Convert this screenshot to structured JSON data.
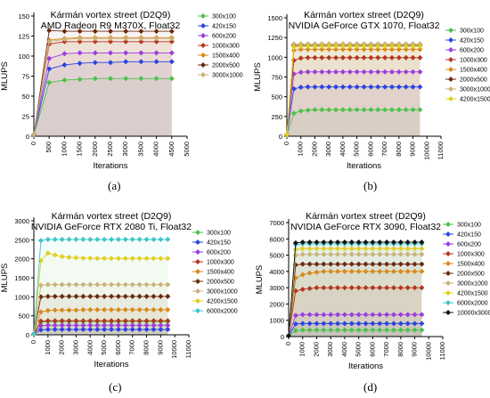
{
  "figure": {
    "captions": [
      "(a)",
      "(b)",
      "(c)",
      "(d)"
    ]
  },
  "chart_data": [
    {
      "type": "line",
      "title": "Kármán vortex street (D2Q9)",
      "subtitle": "AMD Radeon R9 M370X, Float32",
      "xlabel": "Iterations",
      "ylabel": "MLUPS",
      "xlim": [
        0,
        5000
      ],
      "ylim": [
        0,
        150
      ],
      "xticks": [
        0,
        500,
        1000,
        1500,
        2000,
        2500,
        3000,
        3500,
        4000,
        4500,
        5000
      ],
      "yticks": [
        0,
        25,
        50,
        75,
        100,
        125,
        150
      ],
      "grid": false,
      "legend_position": "right",
      "marker": "diamond",
      "x": [
        0,
        500,
        1000,
        1500,
        2000,
        2500,
        3000,
        3500,
        4000,
        4500
      ],
      "series": [
        {
          "name": "300x100",
          "color": "#4cc24c",
          "values": [
            2,
            67,
            70,
            71,
            72,
            72,
            72,
            72,
            72,
            72
          ]
        },
        {
          "name": "420x150",
          "color": "#2a44e0",
          "values": [
            2,
            84,
            89,
            91,
            92,
            92,
            93,
            93,
            93,
            93
          ]
        },
        {
          "name": "600x200",
          "color": "#9b3de0",
          "values": [
            2,
            97,
            103,
            104,
            104,
            104,
            104,
            104,
            104,
            104
          ]
        },
        {
          "name": "1000x300",
          "color": "#b5361e",
          "values": [
            2,
            115,
            118,
            118,
            118,
            118,
            118,
            118,
            118,
            118
          ]
        },
        {
          "name": "1500x400",
          "color": "#d98a1a",
          "values": [
            2,
            120,
            122,
            123,
            123,
            123,
            123,
            123,
            123,
            123
          ]
        },
        {
          "name": "2000x500",
          "color": "#6b2a10",
          "values": [
            2,
            132,
            131,
            131,
            131,
            131,
            131,
            131,
            131,
            131
          ]
        },
        {
          "name": "3000x1000",
          "color": "#c9b27a",
          "values": [
            2,
            118,
            121,
            122,
            122,
            122,
            122,
            122,
            122,
            122
          ]
        }
      ]
    },
    {
      "type": "line",
      "title": "Kármán vortex street (D2Q9)",
      "subtitle": "NVIDIA GeForce GTX 1070, Float32",
      "xlabel": "Iterations",
      "ylabel": "MLUPS",
      "xlim": [
        0,
        11000
      ],
      "ylim": [
        0,
        1500
      ],
      "xticks": [
        0,
        1000,
        2000,
        3000,
        4000,
        5000,
        6000,
        7000,
        8000,
        9000,
        10000,
        11000
      ],
      "yticks": [
        0,
        250,
        500,
        750,
        1000,
        1250,
        1500
      ],
      "grid": false,
      "legend_position": "right",
      "marker": "diamond",
      "x": [
        0,
        500,
        1000,
        1500,
        2000,
        2500,
        3000,
        3500,
        4000,
        4500,
        5000,
        5500,
        6000,
        6500,
        7000,
        7500,
        8000,
        8500,
        9000,
        9500
      ],
      "series": [
        {
          "name": "300x100",
          "color": "#4cc24c",
          "values": [
            20,
            290,
            320,
            330,
            335,
            335,
            335,
            335,
            335,
            335,
            335,
            335,
            335,
            335,
            335,
            335,
            335,
            335,
            335,
            335
          ]
        },
        {
          "name": "420x150",
          "color": "#2a44e0",
          "values": [
            20,
            600,
            620,
            625,
            625,
            625,
            625,
            625,
            625,
            625,
            625,
            625,
            625,
            625,
            625,
            625,
            625,
            625,
            625,
            625
          ]
        },
        {
          "name": "600x200",
          "color": "#9b3de0",
          "values": [
            20,
            790,
            810,
            815,
            815,
            815,
            815,
            815,
            815,
            815,
            815,
            815,
            815,
            815,
            815,
            815,
            815,
            815,
            815,
            815
          ]
        },
        {
          "name": "1000x300",
          "color": "#b5361e",
          "values": [
            20,
            960,
            990,
            995,
            995,
            995,
            995,
            995,
            995,
            995,
            995,
            995,
            995,
            995,
            995,
            995,
            995,
            995,
            995,
            995
          ]
        },
        {
          "name": "1500x400",
          "color": "#d98a1a",
          "values": [
            20,
            1090,
            1100,
            1100,
            1100,
            1100,
            1100,
            1100,
            1100,
            1100,
            1100,
            1100,
            1100,
            1100,
            1100,
            1100,
            1100,
            1100,
            1100,
            1100
          ]
        },
        {
          "name": "2000x500",
          "color": "#6b2a10",
          "values": [
            20,
            1150,
            1150,
            1150,
            1150,
            1150,
            1150,
            1150,
            1150,
            1150,
            1150,
            1150,
            1150,
            1150,
            1150,
            1150,
            1150,
            1150,
            1150,
            1150
          ]
        },
        {
          "name": "3000x1000",
          "color": "#c9b27a",
          "values": [
            20,
            1170,
            1170,
            1170,
            1170,
            1170,
            1170,
            1170,
            1170,
            1170,
            1170,
            1170,
            1170,
            1170,
            1170,
            1170,
            1170,
            1170,
            1170,
            1170
          ]
        },
        {
          "name": "4200x1500",
          "color": "#e0d020",
          "values": [
            20,
            1130,
            1140,
            1140,
            1140,
            1140,
            1140,
            1140,
            1140,
            1140,
            1140,
            1140,
            1140,
            1140,
            1140,
            1140,
            1140,
            1140,
            1140,
            1140
          ]
        }
      ]
    },
    {
      "type": "line",
      "title": "Kármán vortex street (D2Q9)",
      "subtitle": "NVIDIA GeForce RTX 2080 Ti, Float32",
      "xlabel": "Iterations",
      "ylabel": "MLUPS",
      "xlim": [
        0,
        11000
      ],
      "ylim": [
        0,
        3000
      ],
      "xticks": [
        0,
        1000,
        2000,
        3000,
        4000,
        5000,
        6000,
        7000,
        8000,
        9000,
        10000,
        11000
      ],
      "yticks": [
        0,
        500,
        1000,
        1500,
        2000,
        2500,
        3000
      ],
      "grid": false,
      "legend_position": "right",
      "marker": "diamond",
      "x": [
        0,
        500,
        1000,
        1500,
        2000,
        2500,
        3000,
        3500,
        4000,
        4500,
        5000,
        5500,
        6000,
        6500,
        7000,
        7500,
        8000,
        8500,
        9000,
        9500
      ],
      "series": [
        {
          "name": "300x100",
          "color": "#4cc24c",
          "values": [
            20,
            330,
            350,
            350,
            350,
            350,
            350,
            350,
            350,
            350,
            350,
            350,
            350,
            350,
            350,
            350,
            350,
            350,
            350,
            350
          ]
        },
        {
          "name": "420x150",
          "color": "#2a44e0",
          "values": [
            20,
            130,
            140,
            140,
            140,
            140,
            140,
            140,
            140,
            140,
            140,
            140,
            140,
            140,
            140,
            140,
            140,
            140,
            140,
            140
          ]
        },
        {
          "name": "600x200",
          "color": "#9b3de0",
          "values": [
            20,
            240,
            250,
            250,
            250,
            250,
            250,
            250,
            250,
            250,
            250,
            250,
            250,
            250,
            250,
            250,
            250,
            250,
            250,
            250
          ]
        },
        {
          "name": "1000x300",
          "color": "#b5361e",
          "values": [
            20,
            360,
            370,
            370,
            370,
            370,
            370,
            370,
            370,
            370,
            370,
            370,
            370,
            370,
            370,
            370,
            370,
            370,
            370,
            370
          ]
        },
        {
          "name": "1500x400",
          "color": "#d98a1a",
          "values": [
            20,
            600,
            640,
            650,
            650,
            650,
            650,
            660,
            660,
            660,
            660,
            660,
            660,
            660,
            660,
            660,
            660,
            660,
            660,
            660
          ]
        },
        {
          "name": "2000x500",
          "color": "#6b2a10",
          "values": [
            20,
            1000,
            1010,
            1010,
            1010,
            1010,
            1010,
            1010,
            1010,
            1010,
            1010,
            1010,
            1010,
            1010,
            1010,
            1010,
            1010,
            1010,
            1010,
            1010
          ]
        },
        {
          "name": "3000x1000",
          "color": "#c9b27a",
          "values": [
            20,
            1300,
            1320,
            1320,
            1320,
            1320,
            1320,
            1320,
            1320,
            1320,
            1320,
            1320,
            1320,
            1320,
            1320,
            1320,
            1320,
            1320,
            1320,
            1320
          ]
        },
        {
          "name": "4200x1500",
          "color": "#e0d020",
          "values": [
            20,
            1950,
            2150,
            2100,
            2060,
            2040,
            2030,
            2020,
            2020,
            2010,
            2010,
            2010,
            2010,
            2010,
            2010,
            2010,
            2010,
            2010,
            2010,
            2010
          ]
        },
        {
          "name": "6000x2000",
          "color": "#3ec6c6",
          "values": [
            20,
            2480,
            2510,
            2510,
            2510,
            2510,
            2510,
            2510,
            2510,
            2510,
            2510,
            2510,
            2510,
            2510,
            2510,
            2510,
            2510,
            2510,
            2510,
            2510
          ]
        }
      ]
    },
    {
      "type": "line",
      "title": "Kármán vortex street (D2Q9)",
      "subtitle": "NVIDIA GeForce RTX 3090, Float32",
      "xlabel": "Iterations",
      "ylabel": "MLUPS",
      "xlim": [
        0,
        11000
      ],
      "ylim": [
        0,
        7000
      ],
      "xticks": [
        0,
        1000,
        2000,
        3000,
        4000,
        5000,
        6000,
        7000,
        8000,
        9000,
        10000,
        11000
      ],
      "yticks": [
        0,
        1000,
        2000,
        3000,
        4000,
        5000,
        6000,
        7000
      ],
      "grid": false,
      "legend_position": "right",
      "marker": "diamond",
      "x": [
        0,
        500,
        1000,
        1500,
        2000,
        2500,
        3000,
        3500,
        4000,
        4500,
        5000,
        5500,
        6000,
        6500,
        7000,
        7500,
        8000,
        8500,
        9000,
        9500
      ],
      "series": [
        {
          "name": "300x100",
          "color": "#4cc24c",
          "values": [
            50,
            380,
            400,
            400,
            400,
            400,
            400,
            400,
            400,
            400,
            400,
            400,
            400,
            400,
            400,
            400,
            400,
            400,
            400,
            400
          ]
        },
        {
          "name": "420x150",
          "color": "#2a44e0",
          "values": [
            50,
            780,
            800,
            800,
            800,
            800,
            800,
            800,
            800,
            800,
            800,
            800,
            800,
            800,
            800,
            800,
            800,
            800,
            800,
            800
          ]
        },
        {
          "name": "600x200",
          "color": "#9b3de0",
          "values": [
            50,
            1300,
            1350,
            1350,
            1350,
            1350,
            1350,
            1350,
            1350,
            1350,
            1350,
            1350,
            1350,
            1350,
            1350,
            1350,
            1350,
            1350,
            1350,
            1350
          ]
        },
        {
          "name": "1000x300",
          "color": "#b5361e",
          "values": [
            50,
            2800,
            2900,
            2950,
            3000,
            3000,
            3000,
            3000,
            3000,
            3000,
            3000,
            3000,
            3000,
            3000,
            3000,
            3000,
            3000,
            3000,
            3000,
            3000
          ]
        },
        {
          "name": "1500x400",
          "color": "#d98a1a",
          "values": [
            50,
            3600,
            3800,
            3900,
            3950,
            4000,
            4000,
            4000,
            4000,
            4000,
            4000,
            4000,
            4000,
            4000,
            4000,
            4000,
            4000,
            4000,
            4000,
            4000
          ]
        },
        {
          "name": "2000x500",
          "color": "#6b2a10",
          "values": [
            50,
            4400,
            4450,
            4450,
            4450,
            4450,
            4450,
            4450,
            4450,
            4450,
            4450,
            4450,
            4450,
            4450,
            4450,
            4450,
            4450,
            4450,
            4450,
            4450
          ]
        },
        {
          "name": "3000x1000",
          "color": "#c9b27a",
          "values": [
            50,
            5000,
            5050,
            5050,
            5050,
            5050,
            5050,
            5050,
            5050,
            5050,
            5050,
            5050,
            5050,
            5050,
            5050,
            5050,
            5050,
            5050,
            5050,
            5050
          ]
        },
        {
          "name": "4200x1500",
          "color": "#e0d020",
          "values": [
            50,
            5350,
            5400,
            5400,
            5400,
            5400,
            5400,
            5400,
            5400,
            5400,
            5400,
            5400,
            5400,
            5400,
            5400,
            5400,
            5400,
            5400,
            5400,
            5400
          ]
        },
        {
          "name": "6000x2000",
          "color": "#3ec6c6",
          "values": [
            50,
            5650,
            5700,
            5700,
            5700,
            5700,
            5700,
            5700,
            5700,
            5700,
            5700,
            5700,
            5700,
            5700,
            5700,
            5700,
            5700,
            5700,
            5700,
            5700
          ]
        },
        {
          "name": "10000x3000",
          "color": "#111111",
          "values": [
            50,
            5750,
            5800,
            5800,
            5800,
            5800,
            5800,
            5800,
            5800,
            5800,
            5800,
            5800,
            5800,
            5800,
            5800,
            5800,
            5800,
            5800,
            5800,
            5800
          ]
        }
      ]
    }
  ]
}
